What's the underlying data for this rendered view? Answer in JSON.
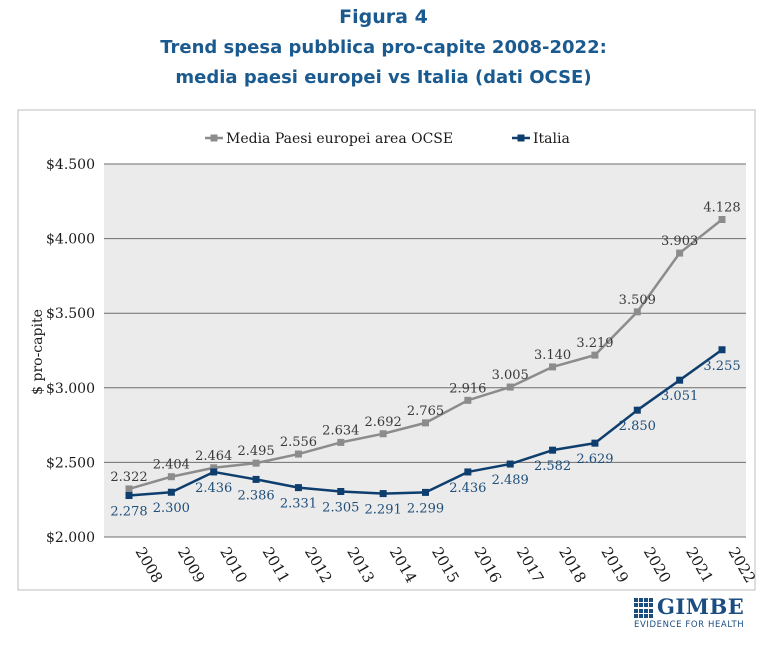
{
  "figure": {
    "label": "Figura 4",
    "title_line1": "Trend spesa pubblica pro-capite 2008-2022:",
    "title_line2": "media paesi europei vs Italia (dati OCSE)"
  },
  "logo": {
    "name": "GIMBE",
    "tagline": "EVIDENCE FOR HEALTH",
    "color": "#1b4d80"
  },
  "chart_data": {
    "type": "line",
    "ylabel": "$ pro-capite",
    "ylim": [
      2000,
      4500
    ],
    "yticks": [
      {
        "value": 2000,
        "label": "$2.000"
      },
      {
        "value": 2500,
        "label": "$2.500"
      },
      {
        "value": 3000,
        "label": "$3.000"
      },
      {
        "value": 3500,
        "label": "$3.500"
      },
      {
        "value": 4000,
        "label": "$4.000"
      },
      {
        "value": 4500,
        "label": "$4.500"
      }
    ],
    "x": [
      "2008",
      "2009",
      "2010",
      "2011",
      "2012",
      "2013",
      "2014",
      "2015",
      "2016",
      "2017",
      "2018",
      "2019",
      "2020",
      "2021",
      "2022"
    ],
    "grid": true,
    "legend_position": "top",
    "plot_background": "#ebebeb",
    "series": [
      {
        "name": "Media Paesi europei area OCSE",
        "color": "#8c8c8c",
        "label_color": "#3a3a3a",
        "label_side": "above",
        "values": [
          2322,
          2404,
          2464,
          2495,
          2556,
          2634,
          2692,
          2765,
          2916,
          3005,
          3140,
          3219,
          3509,
          3903,
          4128
        ],
        "labels": [
          "2.322",
          "2.404",
          "2.464",
          "2.495",
          "2.556",
          "2.634",
          "2.692",
          "2.765",
          "2.916",
          "3.005",
          "3.140",
          "3.219",
          "3.509",
          "3.903",
          "4.128"
        ]
      },
      {
        "name": "Italia",
        "color": "#0e3e6e",
        "label_color": "#1f4e79",
        "label_side": "below",
        "values": [
          2278,
          2300,
          2436,
          2386,
          2331,
          2305,
          2291,
          2299,
          2436,
          2489,
          2582,
          2629,
          2850,
          3051,
          3255
        ],
        "labels": [
          "2.278",
          "2.300",
          "2.436",
          "2.386",
          "2.331",
          "2.305",
          "2.291",
          "2.299",
          "2.436",
          "2.489",
          "2.582",
          "2.629",
          "2.850",
          "3.051",
          "3.255"
        ]
      }
    ]
  }
}
